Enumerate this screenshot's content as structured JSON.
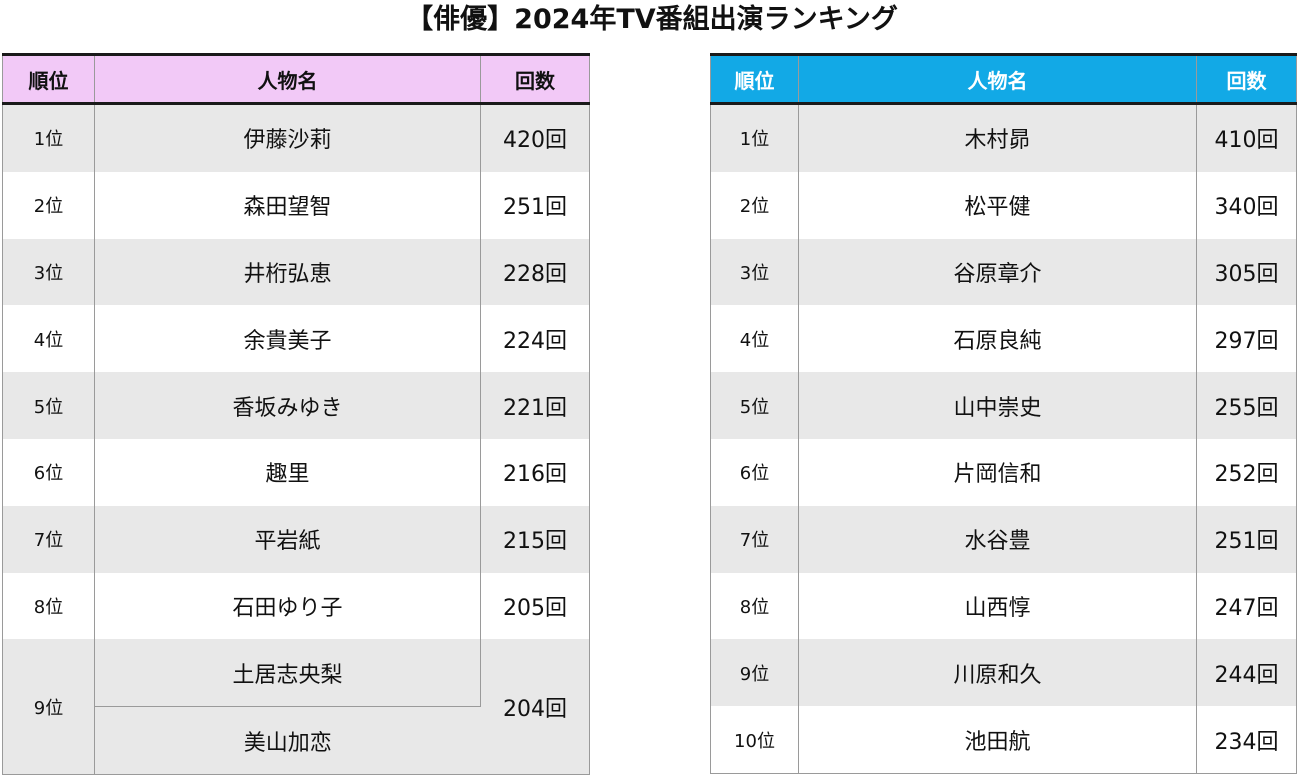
{
  "title": "【俳優】2024年TV番組出演ランキング",
  "left_table": {
    "headers": [
      "順位",
      "人物名",
      "回数"
    ],
    "rows": [
      {
        "rank": "1位",
        "name": "伊藤沙莉",
        "count": "420回"
      },
      {
        "rank": "2位",
        "name": "森田望智",
        "count": "251回"
      },
      {
        "rank": "3位",
        "name": "井桁弘恵",
        "count": "228回"
      },
      {
        "rank": "4位",
        "name": "余貴美子",
        "count": "224回"
      },
      {
        "rank": "5位",
        "name": "香坂みゆき",
        "count": "221回"
      },
      {
        "rank": "6位",
        "name": "趣里",
        "count": "216回"
      },
      {
        "rank": "7位",
        "name": "平岩紙",
        "count": "215回"
      },
      {
        "rank": "8位",
        "name": "石田ゆり子",
        "count": "205回"
      },
      {
        "rank": "9位",
        "names": [
          "土居志央梨",
          "美山加恋"
        ],
        "count": "204回"
      }
    ]
  },
  "right_table": {
    "headers": [
      "順位",
      "人物名",
      "回数"
    ],
    "rows": [
      {
        "rank": "1位",
        "name": "木村昴",
        "count": "410回"
      },
      {
        "rank": "2位",
        "name": "松平健",
        "count": "340回"
      },
      {
        "rank": "3位",
        "name": "谷原章介",
        "count": "305回"
      },
      {
        "rank": "4位",
        "name": "石原良純",
        "count": "297回"
      },
      {
        "rank": "5位",
        "name": "山中崇史",
        "count": "255回"
      },
      {
        "rank": "6位",
        "name": "片岡信和",
        "count": "252回"
      },
      {
        "rank": "7位",
        "name": "水谷豊",
        "count": "251回"
      },
      {
        "rank": "8位",
        "name": "山西惇",
        "count": "247回"
      },
      {
        "rank": "9位",
        "name": "川原和久",
        "count": "244回"
      },
      {
        "rank": "10位",
        "name": "池田航",
        "count": "234回"
      }
    ]
  },
  "colors": {
    "left_header_bg": "#f2c9f7",
    "right_header_bg": "#12a9e6",
    "stripe": "#e8e8e8"
  }
}
